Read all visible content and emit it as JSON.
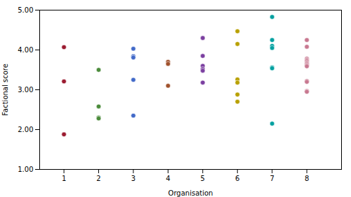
{
  "chart_data": {
    "type": "scatter",
    "xlabel": "Organisation",
    "ylabel": "Factional score",
    "x": [
      1,
      1,
      1,
      2,
      2,
      2,
      2,
      3,
      3,
      3,
      3,
      3,
      4,
      4,
      4,
      5,
      5,
      5,
      5,
      5,
      5,
      6,
      6,
      6,
      6,
      6,
      6,
      7,
      7,
      7,
      7,
      7,
      7,
      7,
      8,
      8,
      8,
      8,
      8,
      8,
      8,
      8,
      8,
      8,
      8,
      8,
      8
    ],
    "values": [
      4.07,
      3.21,
      1.88,
      3.5,
      2.58,
      2.3,
      2.28,
      4.03,
      3.84,
      3.81,
      3.25,
      2.35,
      3.7,
      3.65,
      3.1,
      4.3,
      3.85,
      3.6,
      3.52,
      3.48,
      3.18,
      4.47,
      4.15,
      3.26,
      3.18,
      2.88,
      2.7,
      4.83,
      4.25,
      4.1,
      4.05,
      3.56,
      3.54,
      2.15,
      4.25,
      4.08,
      3.78,
      3.75,
      3.72,
      3.68,
      3.65,
      3.62,
      3.59,
      3.22,
      3.2,
      2.97,
      2.95
    ],
    "colors": [
      "#9B1B30",
      "#9B1B30",
      "#9B1B30",
      "#4B8B3B",
      "#4B8B3B",
      "#4B8B3B",
      "#4B8B3B",
      "#4169C8",
      "#4169C8",
      "#4169C8",
      "#4169C8",
      "#4169C8",
      "#A0522D",
      "#A0522D",
      "#A0522D",
      "#7B3FA0",
      "#7B3FA0",
      "#7B3FA0",
      "#7B3FA0",
      "#7B3FA0",
      "#7B3FA0",
      "#B8A000",
      "#B8A000",
      "#B8A000",
      "#B8A000",
      "#B8A000",
      "#B8A000",
      "#00A0A0",
      "#00A0A0",
      "#00A0A0",
      "#00A0A0",
      "#00A0A0",
      "#00A0A0",
      "#00A0A0",
      "#C87890",
      "#C87890",
      "#C87890",
      "#C87890",
      "#C87890",
      "#C87890",
      "#C87890",
      "#C87890",
      "#C87890",
      "#C87890",
      "#C87890",
      "#C87890",
      "#C87890"
    ],
    "xlim": [
      0.3,
      9.0
    ],
    "ylim": [
      1.0,
      5.0
    ],
    "xticks": [
      1,
      2,
      3,
      4,
      5,
      6,
      7,
      8
    ],
    "yticks": [
      {
        "value": 1.0,
        "label": "1.00"
      },
      {
        "value": 2.0,
        "label": "2.00"
      },
      {
        "value": 3.0,
        "label": "3.00"
      },
      {
        "value": 4.0,
        "label": "4.00"
      },
      {
        "value": 5.0,
        "label": "5.00"
      }
    ],
    "grid": false
  }
}
